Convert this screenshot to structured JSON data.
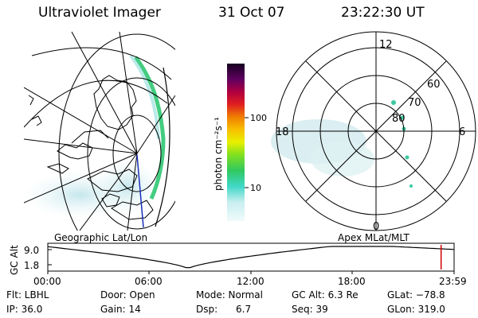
{
  "header": {
    "instrument": "Ultraviolet Imager",
    "date": "31 Oct 07",
    "time": "23:22:30 UT"
  },
  "left_panel": {
    "caption": "Geographic Lat/Lon"
  },
  "right_panel": {
    "caption": "Apex MLat/MLT",
    "mlt_labels": {
      "top": "12",
      "left": "18",
      "right": "6",
      "bottom": "0"
    },
    "lat_labels": [
      "60",
      "70",
      "80"
    ]
  },
  "colorbar": {
    "unit_label": "photon cm⁻²s⁻¹",
    "ticks": [
      "100",
      "10"
    ]
  },
  "altitude_strip": {
    "axis_label": "GC Alt",
    "ticks": [
      "9.0",
      "1.8"
    ],
    "time_ticks": [
      "00:00",
      "06:00",
      "12:00",
      "18:00",
      "23:59"
    ],
    "current_marker_fraction": 0.968
  },
  "status": {
    "row1": {
      "filter": "Flt: LBHL",
      "door": "Door: Open",
      "mode": "Mode: Normal",
      "gc_alt": "GC Alt: 6.3 Re",
      "glat": "GLat: −78.8"
    },
    "row2": {
      "ip": "IP: 36.0",
      "gain": "Gain: 14",
      "dsp_label": "Dsp:",
      "dsp_value": "6.7",
      "seq": "Seq: 39",
      "glon": "GLon: 319.0"
    }
  },
  "colors": {
    "aurora_green": "#22c36a",
    "aurora_cyan": "#7fd6d9",
    "haze": "#c9e7ec",
    "track_blue": "#1a2fb8",
    "marker_red": "#d00000"
  }
}
